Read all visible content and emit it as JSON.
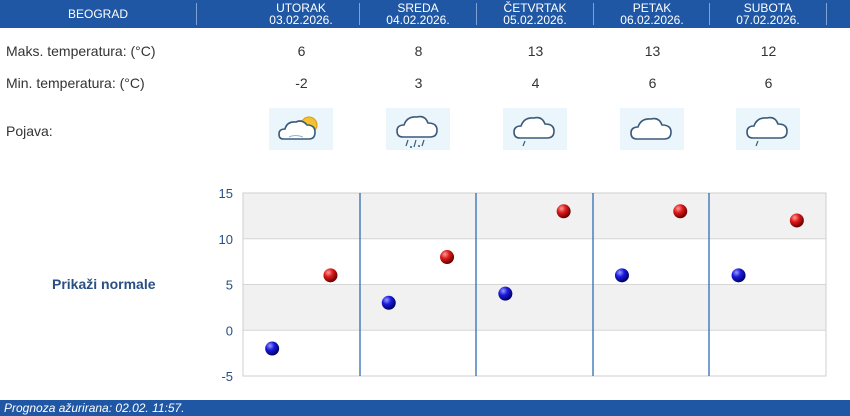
{
  "header": {
    "city": "BEOGRAD",
    "days": [
      {
        "name": "UTORAK",
        "date": "03.02.2026."
      },
      {
        "name": "SREDA",
        "date": "04.02.2026."
      },
      {
        "name": "ČETVRTAK",
        "date": "05.02.2026."
      },
      {
        "name": "PETAK",
        "date": "06.02.2026."
      },
      {
        "name": "SUBOTA",
        "date": "07.02.2026."
      }
    ]
  },
  "rows": {
    "max_label": "Maks. temperatura: (°C)",
    "min_label": "Min. temperatura: (°C)",
    "phenomenon_label": "Pojava:",
    "max_values": [
      "6",
      "8",
      "13",
      "13",
      "12"
    ],
    "min_values": [
      "-2",
      "3",
      "4",
      "6",
      "6"
    ],
    "icons": [
      "partly-cloudy-sun-icon",
      "cloud-showers-icon",
      "cloud-light-rain-icon",
      "cloud-icon",
      "cloud-light-rain-icon"
    ]
  },
  "normals_label": "Prikaži normale",
  "footer": {
    "text": "Prognoza ažurirana:  02.02. 11:57."
  },
  "colors": {
    "header": "#1f57a4",
    "max_point": "#cc1111",
    "min_point": "#1a1acc",
    "separator": "#2f6db5"
  },
  "chart_data": {
    "type": "scatter",
    "categories": [
      "UTORAK",
      "SREDA",
      "ČETVRTAK",
      "PETAK",
      "SUBOTA"
    ],
    "series": [
      {
        "values": [
          6,
          8,
          13,
          13,
          12
        ],
        "color": "#cc1111"
      },
      {
        "values": [
          -2,
          3,
          4,
          6,
          6
        ],
        "color": "#1a1acc"
      }
    ],
    "ylim": [
      -5,
      15
    ],
    "yticks": [
      -5,
      0,
      5,
      10,
      15
    ],
    "grid": true
  }
}
